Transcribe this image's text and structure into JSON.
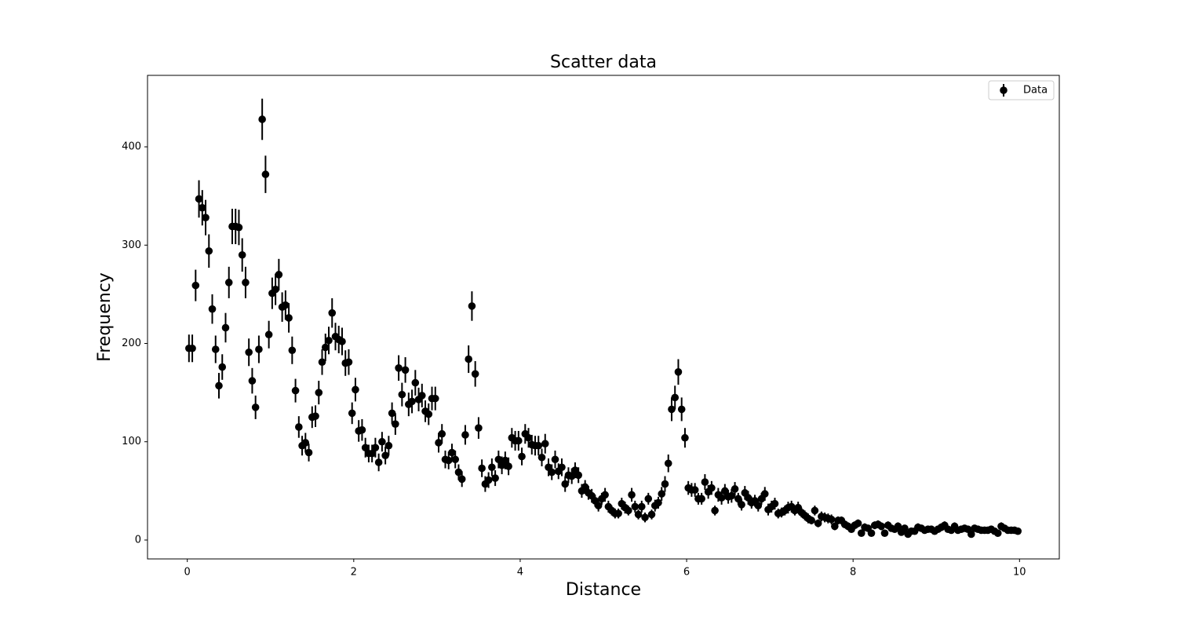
{
  "chart_data": {
    "type": "errorbar",
    "title": "Scatter data",
    "x_label": "Distance",
    "y_label": "Frequency",
    "xlim": [
      -0.478,
      10.478
    ],
    "ylim": [
      -19.2,
      472.7
    ],
    "xticks": [
      0,
      2,
      4,
      6,
      8,
      10
    ],
    "yticks": [
      0,
      100,
      200,
      300,
      400
    ],
    "legend": "upper right",
    "grid": false,
    "series": [
      {
        "name": "Data",
        "color": "#000000",
        "x": [
          0.02,
          0.06,
          0.1,
          0.14,
          0.18,
          0.22,
          0.26,
          0.3,
          0.34,
          0.38,
          0.42,
          0.46,
          0.5,
          0.54,
          0.58,
          0.62,
          0.66,
          0.7,
          0.74,
          0.78,
          0.82,
          0.86,
          0.9,
          0.94,
          0.98,
          1.02,
          1.06,
          1.1,
          1.14,
          1.18,
          1.22,
          1.26,
          1.3,
          1.34,
          1.38,
          1.42,
          1.46,
          1.5,
          1.54,
          1.58,
          1.62,
          1.66,
          1.7,
          1.74,
          1.78,
          1.82,
          1.86,
          1.9,
          1.94,
          1.98,
          2.02,
          2.06,
          2.1,
          2.14,
          2.18,
          2.22,
          2.26,
          2.3,
          2.34,
          2.38,
          2.42,
          2.46,
          2.5,
          2.54,
          2.58,
          2.62,
          2.66,
          2.7,
          2.74,
          2.78,
          2.82,
          2.86,
          2.9,
          2.94,
          2.98,
          3.02,
          3.06,
          3.1,
          3.14,
          3.18,
          3.22,
          3.26,
          3.3,
          3.34,
          3.38,
          3.42,
          3.46,
          3.5,
          3.54,
          3.58,
          3.62,
          3.66,
          3.7,
          3.74,
          3.78,
          3.82,
          3.86,
          3.9,
          3.94,
          3.98,
          4.02,
          4.06,
          4.1,
          4.14,
          4.18,
          4.22,
          4.26,
          4.3,
          4.34,
          4.38,
          4.42,
          4.46,
          4.5,
          4.54,
          4.58,
          4.62,
          4.66,
          4.7,
          4.74,
          4.78,
          4.82,
          4.86,
          4.9,
          4.94,
          4.98,
          5.02,
          5.06,
          5.1,
          5.14,
          5.18,
          5.22,
          5.26,
          5.3,
          5.34,
          5.38,
          5.42,
          5.46,
          5.5,
          5.54,
          5.58,
          5.62,
          5.66,
          5.7,
          5.74,
          5.78,
          5.82,
          5.86,
          5.9,
          5.94,
          5.98,
          6.02,
          6.06,
          6.1,
          6.14,
          6.18,
          6.22,
          6.26,
          6.3,
          6.34,
          6.38,
          6.42,
          6.46,
          6.5,
          6.54,
          6.58,
          6.62,
          6.66,
          6.7,
          6.74,
          6.78,
          6.82,
          6.86,
          6.9,
          6.94,
          6.98,
          7.02,
          7.06,
          7.1,
          7.14,
          7.18,
          7.22,
          7.26,
          7.3,
          7.34,
          7.38,
          7.42,
          7.46,
          7.5,
          7.54,
          7.58,
          7.62,
          7.66,
          7.7,
          7.74,
          7.78,
          7.82,
          7.86,
          7.9,
          7.94,
          7.98,
          8.02,
          8.06,
          8.1,
          8.14,
          8.18,
          8.22,
          8.26,
          8.3,
          8.34,
          8.38,
          8.42,
          8.46,
          8.5,
          8.54,
          8.58,
          8.62,
          8.66,
          8.7,
          8.74,
          8.78,
          8.82,
          8.86,
          8.9,
          8.94,
          8.98,
          9.02,
          9.06,
          9.1,
          9.14,
          9.18,
          9.22,
          9.26,
          9.3,
          9.34,
          9.38,
          9.42,
          9.46,
          9.5,
          9.54,
          9.58,
          9.62,
          9.66,
          9.7,
          9.74,
          9.78,
          9.82,
          9.86,
          9.9,
          9.94,
          9.98
        ],
        "values": [
          195,
          195,
          259,
          347,
          338,
          328,
          294,
          235,
          194,
          157,
          176,
          216,
          262,
          319,
          319,
          318,
          290,
          262,
          191,
          162,
          135,
          194,
          428,
          372,
          209,
          251,
          255,
          270,
          237,
          239,
          226,
          193,
          152,
          115,
          96,
          99,
          89,
          125,
          126,
          150,
          181,
          196,
          203,
          231,
          207,
          204,
          202,
          180,
          181,
          129,
          153,
          111,
          112,
          94,
          88,
          88,
          94,
          79,
          100,
          86,
          96,
          129,
          118,
          175,
          148,
          173,
          138,
          141,
          160,
          143,
          147,
          131,
          128,
          144,
          144,
          99,
          108,
          82,
          81,
          89,
          82,
          69,
          62,
          107,
          184,
          238,
          169,
          114,
          73,
          57,
          61,
          74,
          63,
          82,
          76,
          81,
          75,
          104,
          101,
          101,
          85,
          108,
          104,
          97,
          96,
          96,
          84,
          98,
          74,
          69,
          82,
          70,
          74,
          57,
          66,
          65,
          71,
          66,
          50,
          54,
          48,
          45,
          40,
          35,
          42,
          46,
          34,
          30,
          27,
          27,
          37,
          33,
          30,
          46,
          34,
          26,
          34,
          23,
          42,
          26,
          35,
          38,
          47,
          57,
          78,
          133,
          145,
          171,
          133,
          104,
          53,
          51,
          51,
          42,
          42,
          59,
          49,
          53,
          30,
          46,
          43,
          50,
          44,
          45,
          52,
          42,
          36,
          48,
          43,
          38,
          40,
          35,
          42,
          47,
          31,
          34,
          37,
          27,
          28,
          30,
          33,
          34,
          30,
          33,
          28,
          25,
          22,
          20,
          30,
          17,
          24,
          23,
          22,
          21,
          14,
          20,
          20,
          16,
          14,
          11,
          15,
          17,
          7,
          13,
          12,
          7,
          15,
          16,
          14,
          7,
          15,
          12,
          11,
          14,
          8,
          12,
          6,
          9,
          9,
          13,
          12,
          10,
          11,
          11,
          9,
          11,
          13,
          15,
          11,
          10,
          14,
          10,
          11,
          12,
          11,
          6,
          12,
          11,
          10,
          10,
          10,
          11,
          9,
          7,
          14,
          12,
          10,
          10,
          10,
          9
        ],
        "errors": [
          14,
          14,
          16,
          19,
          18,
          18,
          17,
          15,
          14,
          13,
          13,
          15,
          16,
          18,
          18,
          18,
          17,
          16,
          14,
          13,
          12,
          14,
          21,
          19,
          14,
          16,
          16,
          16,
          15,
          15,
          15,
          14,
          12,
          11,
          10,
          10,
          9,
          11,
          11,
          12,
          13,
          14,
          14,
          15,
          14,
          14,
          14,
          13,
          13,
          11,
          12,
          11,
          11,
          10,
          9,
          9,
          10,
          9,
          10,
          9,
          10,
          11,
          11,
          13,
          12,
          13,
          12,
          12,
          13,
          12,
          12,
          11,
          11,
          12,
          12,
          10,
          10,
          9,
          9,
          9,
          9,
          8,
          8,
          10,
          14,
          15,
          13,
          11,
          9,
          8,
          8,
          9,
          8,
          9,
          9,
          9,
          9,
          10,
          10,
          10,
          9,
          10,
          10,
          10,
          10,
          10,
          9,
          10,
          9,
          8,
          9,
          8,
          9,
          8,
          8,
          8,
          8,
          8,
          7,
          7,
          7,
          7,
          6,
          6,
          6,
          7,
          6,
          5,
          5,
          5,
          6,
          6,
          5,
          7,
          6,
          5,
          6,
          5,
          6,
          5,
          6,
          6,
          7,
          8,
          9,
          12,
          12,
          13,
          12,
          10,
          7,
          7,
          7,
          6,
          6,
          8,
          7,
          7,
          5,
          7,
          7,
          7,
          7,
          7,
          7,
          6,
          6,
          7,
          7,
          6,
          6,
          6,
          6,
          7,
          6,
          6,
          6,
          5,
          5,
          5,
          6,
          6,
          5,
          6,
          5,
          5,
          5,
          4,
          5,
          4,
          5,
          5,
          5,
          5,
          4,
          4,
          4,
          4,
          4,
          3,
          4,
          4,
          3,
          4,
          3,
          3,
          4,
          4,
          4,
          3,
          4,
          3,
          3,
          4,
          3,
          3,
          2,
          3,
          3,
          4,
          3,
          3,
          3,
          3,
          3,
          3,
          4,
          4,
          3,
          3,
          4,
          3,
          3,
          3,
          3,
          2,
          3,
          3,
          3,
          3,
          3,
          3,
          3,
          3,
          4,
          3,
          3,
          3,
          3,
          3
        ]
      }
    ]
  }
}
